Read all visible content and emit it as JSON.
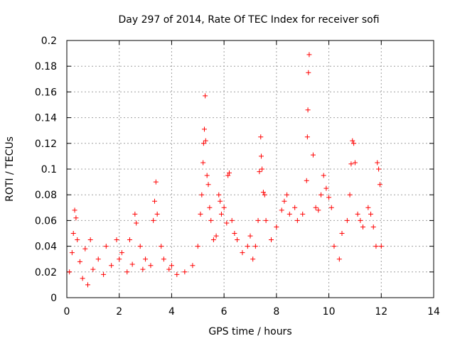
{
  "chart_data": {
    "type": "scatter",
    "title": "Day 297 of 2014, Rate Of TEC Index for receiver sofi",
    "xlabel": "GPS time / hours",
    "ylabel": "ROTI / TECUs",
    "xlim": [
      0,
      14
    ],
    "ylim": [
      0,
      0.2
    ],
    "x_ticks": [
      0,
      2,
      4,
      6,
      8,
      10,
      12,
      14
    ],
    "y_ticks": [
      0,
      0.02,
      0.04,
      0.06,
      0.08,
      0.1,
      0.12,
      0.14,
      0.16,
      0.18,
      0.2
    ],
    "x_tick_labels": [
      "0",
      "2",
      "4",
      "6",
      "8",
      "10",
      "12",
      "14"
    ],
    "y_tick_labels": [
      "0",
      "0.02",
      "0.04",
      "0.06",
      "0.08",
      "0.1",
      "0.12",
      "0.14",
      "0.16",
      "0.18",
      "0.2"
    ],
    "grid": true,
    "marker": "+",
    "color": "#ff0000",
    "series": [
      {
        "name": "ROTI sofi",
        "points": [
          [
            0.1,
            0.02
          ],
          [
            0.2,
            0.035
          ],
          [
            0.25,
            0.05
          ],
          [
            0.3,
            0.068
          ],
          [
            0.35,
            0.062
          ],
          [
            0.4,
            0.045
          ],
          [
            0.5,
            0.028
          ],
          [
            0.6,
            0.015
          ],
          [
            0.7,
            0.038
          ],
          [
            0.8,
            0.01
          ],
          [
            0.9,
            0.045
          ],
          [
            1.0,
            0.022
          ],
          [
            1.2,
            0.03
          ],
          [
            1.4,
            0.018
          ],
          [
            1.5,
            0.04
          ],
          [
            1.7,
            0.025
          ],
          [
            1.9,
            0.045
          ],
          [
            2.0,
            0.03
          ],
          [
            2.1,
            0.035
          ],
          [
            2.3,
            0.02
          ],
          [
            2.4,
            0.045
          ],
          [
            2.5,
            0.026
          ],
          [
            2.6,
            0.065
          ],
          [
            2.65,
            0.058
          ],
          [
            2.8,
            0.04
          ],
          [
            2.9,
            0.022
          ],
          [
            3.0,
            0.03
          ],
          [
            3.2,
            0.025
          ],
          [
            3.3,
            0.06
          ],
          [
            3.35,
            0.075
          ],
          [
            3.4,
            0.09
          ],
          [
            3.45,
            0.065
          ],
          [
            3.6,
            0.04
          ],
          [
            3.7,
            0.03
          ],
          [
            3.9,
            0.022
          ],
          [
            4.0,
            0.025
          ],
          [
            4.2,
            0.018
          ],
          [
            4.5,
            0.02
          ],
          [
            4.8,
            0.025
          ],
          [
            5.0,
            0.04
          ],
          [
            5.1,
            0.065
          ],
          [
            5.15,
            0.08
          ],
          [
            5.2,
            0.105
          ],
          [
            5.22,
            0.12
          ],
          [
            5.25,
            0.131
          ],
          [
            5.28,
            0.157
          ],
          [
            5.3,
            0.122
          ],
          [
            5.35,
            0.095
          ],
          [
            5.4,
            0.088
          ],
          [
            5.45,
            0.07
          ],
          [
            5.5,
            0.06
          ],
          [
            5.6,
            0.045
          ],
          [
            5.7,
            0.048
          ],
          [
            5.8,
            0.08
          ],
          [
            5.85,
            0.075
          ],
          [
            5.9,
            0.065
          ],
          [
            6.0,
            0.07
          ],
          [
            6.1,
            0.058
          ],
          [
            6.15,
            0.095
          ],
          [
            6.2,
            0.097
          ],
          [
            6.3,
            0.06
          ],
          [
            6.4,
            0.05
          ],
          [
            6.5,
            0.045
          ],
          [
            6.7,
            0.035
          ],
          [
            6.9,
            0.04
          ],
          [
            7.0,
            0.048
          ],
          [
            7.1,
            0.03
          ],
          [
            7.2,
            0.04
          ],
          [
            7.3,
            0.06
          ],
          [
            7.35,
            0.098
          ],
          [
            7.4,
            0.125
          ],
          [
            7.42,
            0.11
          ],
          [
            7.45,
            0.1
          ],
          [
            7.5,
            0.082
          ],
          [
            7.55,
            0.08
          ],
          [
            7.6,
            0.06
          ],
          [
            7.8,
            0.045
          ],
          [
            8.0,
            0.055
          ],
          [
            8.2,
            0.068
          ],
          [
            8.3,
            0.075
          ],
          [
            8.4,
            0.08
          ],
          [
            8.5,
            0.065
          ],
          [
            8.7,
            0.07
          ],
          [
            8.8,
            0.06
          ],
          [
            9.0,
            0.065
          ],
          [
            9.15,
            0.091
          ],
          [
            9.18,
            0.125
          ],
          [
            9.2,
            0.146
          ],
          [
            9.22,
            0.175
          ],
          [
            9.25,
            0.189
          ],
          [
            9.4,
            0.111
          ],
          [
            9.5,
            0.07
          ],
          [
            9.6,
            0.068
          ],
          [
            9.7,
            0.08
          ],
          [
            9.8,
            0.095
          ],
          [
            9.9,
            0.085
          ],
          [
            10.0,
            0.078
          ],
          [
            10.1,
            0.07
          ],
          [
            10.2,
            0.04
          ],
          [
            10.4,
            0.03
          ],
          [
            10.5,
            0.05
          ],
          [
            10.7,
            0.06
          ],
          [
            10.8,
            0.08
          ],
          [
            10.85,
            0.104
          ],
          [
            10.9,
            0.122
          ],
          [
            10.95,
            0.12
          ],
          [
            11.0,
            0.105
          ],
          [
            11.1,
            0.065
          ],
          [
            11.2,
            0.06
          ],
          [
            11.3,
            0.055
          ],
          [
            11.5,
            0.07
          ],
          [
            11.6,
            0.065
          ],
          [
            11.7,
            0.055
          ],
          [
            11.8,
            0.04
          ],
          [
            11.85,
            0.105
          ],
          [
            11.9,
            0.1
          ],
          [
            11.95,
            0.088
          ],
          [
            12.0,
            0.04
          ]
        ]
      }
    ]
  }
}
